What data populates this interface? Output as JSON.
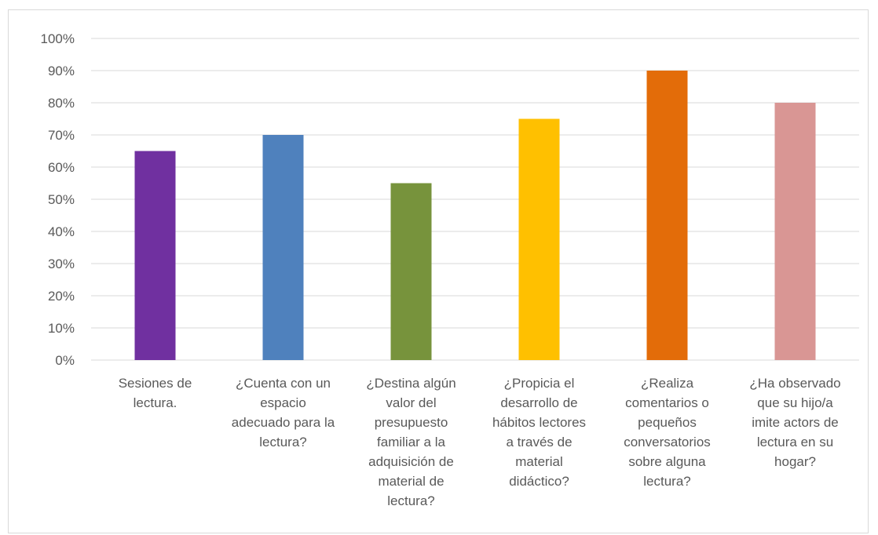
{
  "chart_data": {
    "type": "bar",
    "categories": [
      [
        "Sesiones de",
        "lectura."
      ],
      [
        "¿Cuenta con un",
        "espacio",
        "adecuado para la",
        "lectura?"
      ],
      [
        "¿Destina algún",
        "valor del",
        "presupuesto",
        "familiar a la",
        "adquisición de",
        "material de",
        "lectura?"
      ],
      [
        "¿Propicia el",
        "desarrollo de",
        "hábitos lectores",
        "a través de",
        "material",
        "didáctico?"
      ],
      [
        "¿Realiza",
        "comentarios o",
        "pequeños",
        "conversatorios",
        "sobre alguna",
        "lectura?"
      ],
      [
        "¿Ha observado",
        "que su hijo/a",
        "imite actors de",
        "lectura en su",
        "hogar?"
      ]
    ],
    "values": [
      65,
      70,
      55,
      75,
      90,
      80
    ],
    "colors": [
      "#7030a0",
      "#4f81bd",
      "#77933c",
      "#ffc000",
      "#e36c09",
      "#d99694"
    ],
    "ylim": [
      0,
      100
    ],
    "yticks": [
      "0%",
      "10%",
      "20%",
      "30%",
      "40%",
      "50%",
      "60%",
      "70%",
      "80%",
      "90%",
      "100%"
    ],
    "grid": true,
    "legend": "none"
  }
}
